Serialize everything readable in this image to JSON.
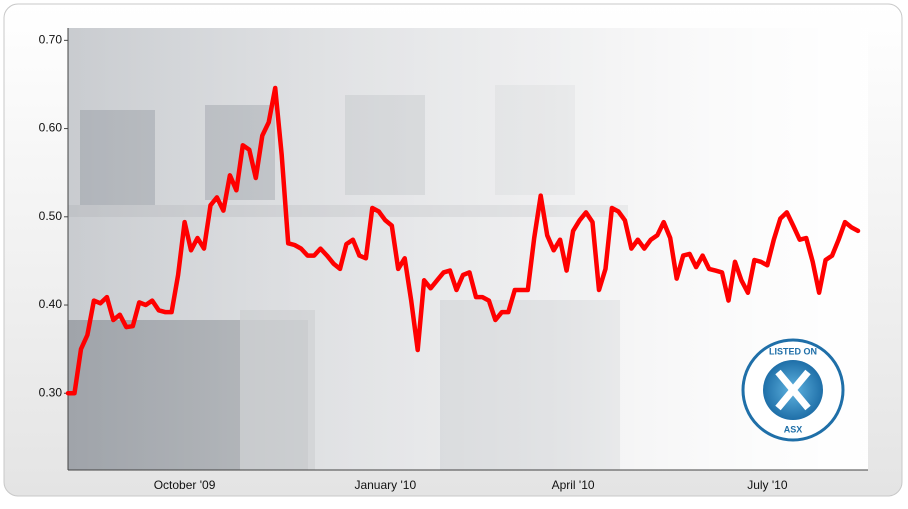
{
  "chart_data": {
    "type": "line",
    "categories": [
      null,
      null,
      null,
      null,
      null,
      null,
      null,
      null,
      null,
      null,
      null,
      null,
      null,
      null,
      null,
      null,
      null,
      null,
      "October '09",
      null,
      null,
      null,
      null,
      null,
      null,
      null,
      null,
      null,
      null,
      null,
      null,
      null,
      null,
      null,
      null,
      null,
      null,
      null,
      null,
      null,
      null,
      null,
      null,
      null,
      null,
      null,
      null,
      null,
      null,
      "January '10",
      null,
      null,
      null,
      null,
      null,
      null,
      null,
      null,
      null,
      null,
      null,
      null,
      null,
      null,
      null,
      null,
      null,
      null,
      null,
      null,
      null,
      null,
      null,
      null,
      null,
      null,
      null,
      null,
      "April '10",
      null,
      null,
      null,
      null,
      null,
      null,
      null,
      null,
      null,
      null,
      null,
      null,
      null,
      null,
      null,
      null,
      null,
      null,
      null,
      null,
      null,
      null,
      null,
      null,
      null,
      null,
      null,
      null,
      null,
      "July '10",
      null,
      null,
      null,
      null,
      null,
      null,
      null,
      null,
      null,
      null,
      null,
      null,
      null,
      null
    ],
    "series": [
      {
        "color": "#ff0000",
        "values": [
          0.3,
          0.3,
          0.35,
          0.366,
          0.405,
          0.402,
          0.409,
          0.383,
          0.389,
          0.375,
          0.376,
          0.403,
          0.4,
          0.405,
          0.394,
          0.392,
          0.392,
          0.434,
          0.494,
          0.462,
          0.476,
          0.464,
          0.513,
          0.522,
          0.507,
          0.547,
          0.53,
          0.581,
          0.576,
          0.544,
          0.592,
          0.607,
          0.646,
          0.57,
          0.47,
          0.468,
          0.464,
          0.456,
          0.456,
          0.464,
          0.456,
          0.447,
          0.441,
          0.469,
          0.474,
          0.456,
          0.453,
          0.51,
          0.506,
          0.496,
          0.49,
          0.441,
          0.453,
          0.405,
          0.349,
          0.428,
          0.419,
          0.428,
          0.437,
          0.439,
          0.417,
          0.434,
          0.437,
          0.409,
          0.409,
          0.405,
          0.383,
          0.392,
          0.392,
          0.417,
          0.417,
          0.417,
          0.476,
          0.524,
          0.479,
          0.462,
          0.474,
          0.439,
          0.484,
          0.496,
          0.505,
          0.494,
          0.417,
          0.441,
          0.51,
          0.506,
          0.496,
          0.464,
          0.474,
          0.464,
          0.474,
          0.479,
          0.494,
          0.476,
          0.43,
          0.456,
          0.458,
          0.443,
          0.456,
          0.441,
          0.439,
          0.437,
          0.405,
          0.449,
          0.428,
          0.414,
          0.451,
          0.449,
          0.445,
          0.474,
          0.498,
          0.505,
          0.49,
          0.474,
          0.476,
          0.449,
          0.414,
          0.451,
          0.456,
          0.474,
          0.494,
          0.488,
          0.484
        ]
      }
    ],
    "ylim": [
      0.213,
      0.714
    ],
    "yticks": [
      {
        "value": 0.3,
        "label": "0.30"
      },
      {
        "value": 0.4,
        "label": "0.40"
      },
      {
        "value": 0.5,
        "label": "0.50"
      },
      {
        "value": 0.6,
        "label": "0.60"
      },
      {
        "value": 0.7,
        "label": "0.70"
      }
    ],
    "grid": false
  },
  "logo": {
    "top": "LISTED ON",
    "bottom": "ASX"
  }
}
